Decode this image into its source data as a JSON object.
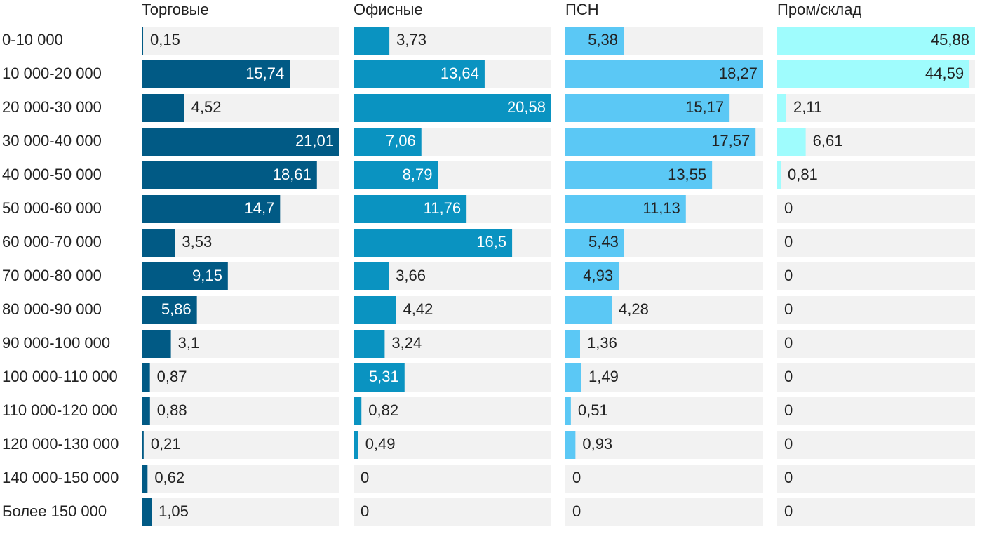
{
  "chart_data": {
    "type": "bar",
    "categories": [
      "0-10 000",
      "10 000-20 000",
      "20 000-30 000",
      "30 000-40 000",
      "40 000-50 000",
      "50 000-60 000",
      "60 000-70 000",
      "70 000-80 000",
      "80 000-90 000",
      "90 000-100 000",
      "100 000-110 000",
      "110 000-120 000",
      "120 000-130 000",
      "140 000-150 000",
      "Более 150 000"
    ],
    "series": [
      {
        "name": "Торговые",
        "color": "#015a85",
        "values": [
          0.15,
          15.74,
          4.52,
          21.01,
          18.61,
          14.7,
          3.53,
          9.15,
          5.86,
          3.1,
          0.87,
          0.88,
          0.21,
          0.62,
          1.05
        ],
        "value_labels": [
          "0,15",
          "15,74",
          "4,52",
          "21,01",
          "18,61",
          "14,7",
          "3,53",
          "9,15",
          "5,86",
          "3,1",
          "0,87",
          "0,88",
          "0,21",
          "0,62",
          "1,05"
        ]
      },
      {
        "name": "Офисные",
        "color": "#0a93c1",
        "values": [
          3.73,
          13.64,
          20.58,
          7.06,
          8.79,
          11.76,
          16.5,
          3.66,
          4.42,
          3.24,
          5.31,
          0.82,
          0.49,
          0,
          0
        ],
        "value_labels": [
          "3,73",
          "13,64",
          "20,58",
          "7,06",
          "8,79",
          "11,76",
          "16,5",
          "3,66",
          "4,42",
          "3,24",
          "5,31",
          "0,82",
          "0,49",
          "0",
          "0"
        ]
      },
      {
        "name": "ПСН",
        "color": "#5bc8f5",
        "values": [
          5.38,
          18.27,
          15.17,
          17.57,
          13.55,
          11.13,
          5.43,
          4.93,
          4.28,
          1.36,
          1.49,
          0.51,
          0.93,
          0,
          0
        ],
        "value_labels": [
          "5,38",
          "18,27",
          "15,17",
          "17,57",
          "13,55",
          "11,13",
          "5,43",
          "4,93",
          "4,28",
          "1,36",
          "1,49",
          "0,51",
          "0,93",
          "0",
          "0"
        ]
      },
      {
        "name": "Пром/склад",
        "color": "#9ffcfd",
        "values": [
          45.88,
          44.59,
          2.11,
          6.61,
          0.81,
          0,
          0,
          0,
          0,
          0,
          0,
          0,
          0,
          0,
          0
        ],
        "value_labels": [
          "45,88",
          "44,59",
          "2,11",
          "6,61",
          "0,81",
          "0",
          "0",
          "0",
          "0",
          "0",
          "0",
          "0",
          "0",
          "0",
          "0"
        ]
      }
    ]
  }
}
